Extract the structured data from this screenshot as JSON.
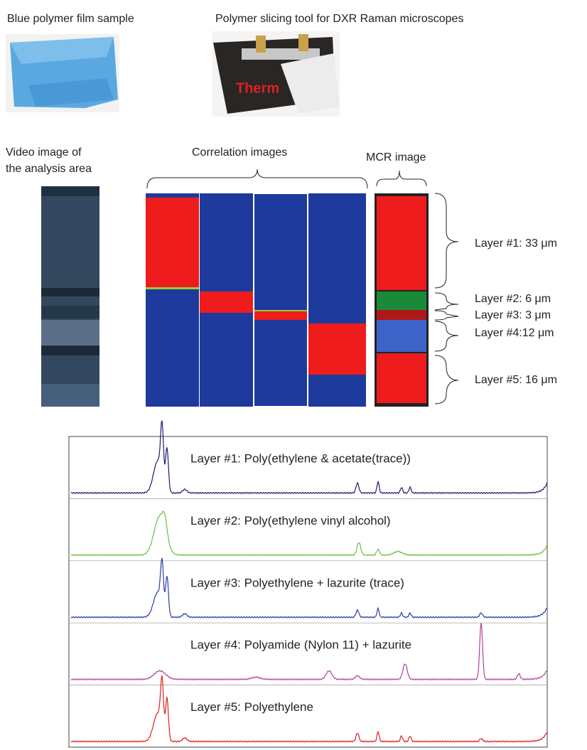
{
  "header": {
    "film_caption": "Blue polymer film sample",
    "tool_caption": "Polymer slicing tool for DXR Raman microscopes"
  },
  "images": {
    "video_caption": [
      "Video image of",
      "the analysis area"
    ],
    "correlation_caption": "Correlation images",
    "mcr_caption": "MCR image"
  },
  "layers": [
    "Layer #1: 33 μm",
    "Layer #2:  6 μm",
    "Layer #3:  3 μm",
    "Layer #4:12 μm",
    "Layer #5: 16 μm"
  ],
  "spectra": [
    "Layer #1: Poly(ethylene  & acetate(trace))",
    "Layer #2: Poly(ethylene  vinyl alcohol)",
    "Layer #3: Polyethylene + lazurite (trace)",
    "Layer #4: Polyamide (Nylon 11) + lazurite",
    "Layer #5: Polyethylene"
  ]
}
